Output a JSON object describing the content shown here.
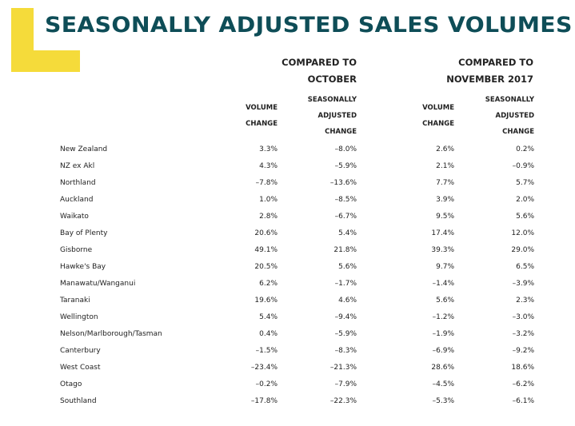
{
  "title": "SEASONALLY ADJUSTED SALES VOLUMES",
  "groups": [
    {
      "line1": "COMPARED TO",
      "line2": "OCTOBER"
    },
    {
      "line1": "COMPARED TO",
      "line2": "NOVEMBER 2017"
    }
  ],
  "subheaders": {
    "volume": [
      "VOLUME",
      "CHANGE"
    ],
    "seasonal": [
      "SEASONALLY",
      "ADJUSTED",
      "CHANGE"
    ]
  },
  "rows": [
    {
      "region": "New Zealand",
      "oct_vol": "3.3%",
      "oct_sa": "–8.0%",
      "nov_vol": "2.6%",
      "nov_sa": "0.2%"
    },
    {
      "region": "NZ ex Akl",
      "oct_vol": "4.3%",
      "oct_sa": "–5.9%",
      "nov_vol": "2.1%",
      "nov_sa": "–0.9%"
    },
    {
      "region": "Northland",
      "oct_vol": "–7.8%",
      "oct_sa": "–13.6%",
      "nov_vol": "7.7%",
      "nov_sa": "5.7%"
    },
    {
      "region": "Auckland",
      "oct_vol": "1.0%",
      "oct_sa": "–8.5%",
      "nov_vol": "3.9%",
      "nov_sa": "2.0%"
    },
    {
      "region": "Waikato",
      "oct_vol": "2.8%",
      "oct_sa": "–6.7%",
      "nov_vol": "9.5%",
      "nov_sa": "5.6%"
    },
    {
      "region": "Bay of Plenty",
      "oct_vol": "20.6%",
      "oct_sa": "5.4%",
      "nov_vol": "17.4%",
      "nov_sa": "12.0%"
    },
    {
      "region": "Gisborne",
      "oct_vol": "49.1%",
      "oct_sa": "21.8%",
      "nov_vol": "39.3%",
      "nov_sa": "29.0%"
    },
    {
      "region": "Hawke's Bay",
      "oct_vol": "20.5%",
      "oct_sa": "5.6%",
      "nov_vol": "9.7%",
      "nov_sa": "6.5%"
    },
    {
      "region": "Manawatu/Wanganui",
      "oct_vol": "6.2%",
      "oct_sa": "–1.7%",
      "nov_vol": "–1.4%",
      "nov_sa": "–3.9%"
    },
    {
      "region": "Taranaki",
      "oct_vol": "19.6%",
      "oct_sa": "4.6%",
      "nov_vol": "5.6%",
      "nov_sa": "2.3%"
    },
    {
      "region": "Wellington",
      "oct_vol": "5.4%",
      "oct_sa": "–9.4%",
      "nov_vol": "–1.2%",
      "nov_sa": "–3.0%"
    },
    {
      "region": "Nelson/Marlborough/Tasman",
      "oct_vol": "0.4%",
      "oct_sa": "–5.9%",
      "nov_vol": "–1.9%",
      "nov_sa": "–3.2%"
    },
    {
      "region": "Canterbury",
      "oct_vol": "–1.5%",
      "oct_sa": "–8.3%",
      "nov_vol": "–6.9%",
      "nov_sa": "–9.2%"
    },
    {
      "region": "West Coast",
      "oct_vol": "–23.4%",
      "oct_sa": "–21.3%",
      "nov_vol": "28.6%",
      "nov_sa": "18.6%"
    },
    {
      "region": "Otago",
      "oct_vol": "–0.2%",
      "oct_sa": "–7.9%",
      "nov_vol": "–4.5%",
      "nov_sa": "–6.2%"
    },
    {
      "region": "Southland",
      "oct_vol": "–17.8%",
      "oct_sa": "–22.3%",
      "nov_vol": "–5.3%",
      "nov_sa": "–6.1%"
    }
  ],
  "colors": {
    "accent": "#F5DB3A",
    "title": "#0E4D57",
    "text": "#222222"
  }
}
